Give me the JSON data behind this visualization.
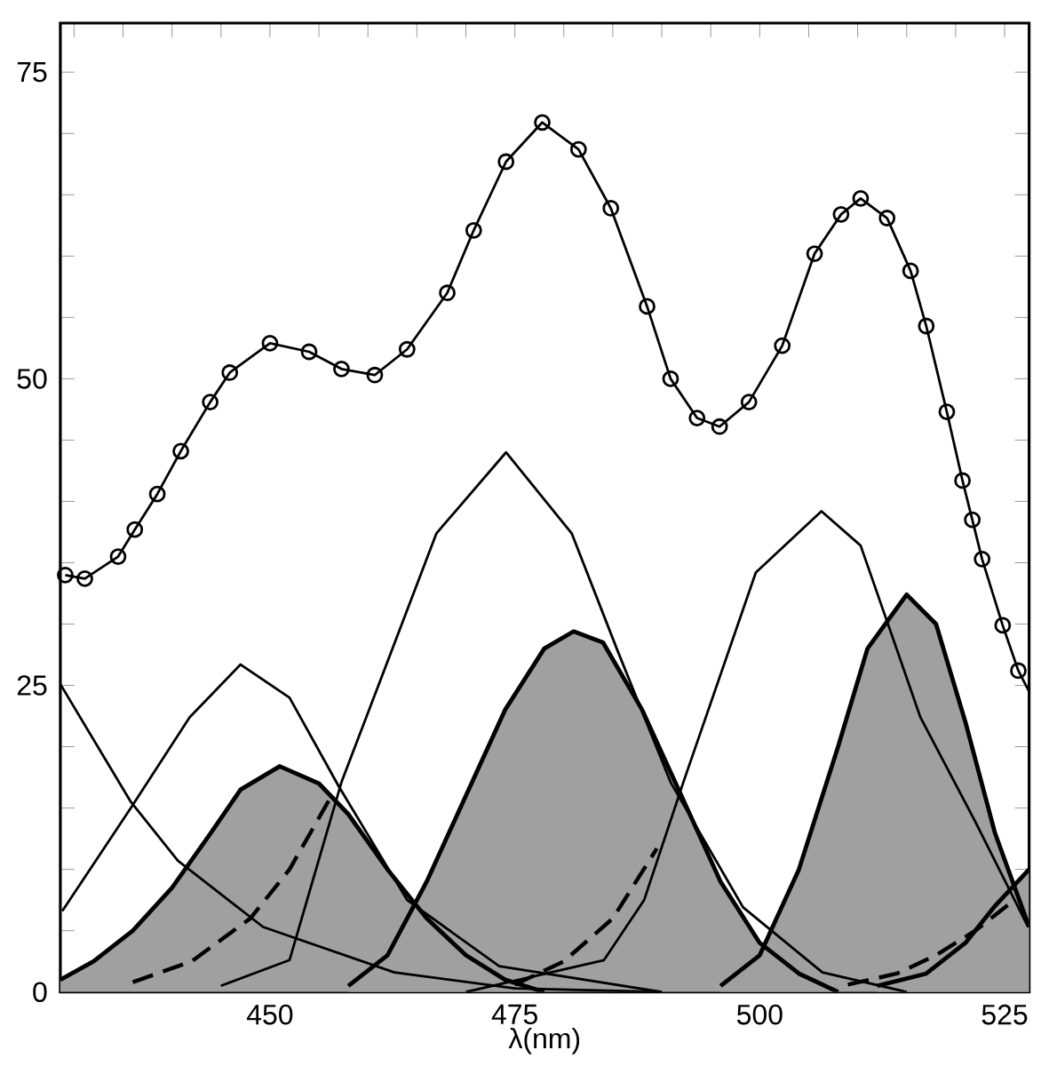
{
  "chart_data": {
    "type": "line",
    "xlabel": "λ(nm)",
    "xlim": [
      428.6,
      527.5
    ],
    "ylim": [
      0,
      79
    ],
    "xticks": [
      {
        "value": 430,
        "label": null
      },
      {
        "value": 435,
        "label": null
      },
      {
        "value": 440,
        "label": null
      },
      {
        "value": 445,
        "label": null
      },
      450,
      {
        "value": 455,
        "label": null
      },
      {
        "value": 460,
        "label": null
      },
      {
        "value": 465,
        "label": null
      },
      {
        "value": 470,
        "label": null
      },
      475,
      {
        "value": 480,
        "label": null
      },
      {
        "value": 485,
        "label": null
      },
      {
        "value": 490,
        "label": null
      },
      {
        "value": 495,
        "label": null
      },
      500,
      {
        "value": 505,
        "label": null
      },
      {
        "value": 510,
        "label": null
      },
      {
        "value": 515,
        "label": null
      },
      {
        "value": 520,
        "label": null
      },
      525
    ],
    "yticks": [
      0,
      {
        "value": 5,
        "label": null
      },
      {
        "value": 10,
        "label": null
      },
      {
        "value": 15,
        "label": null
      },
      {
        "value": 20,
        "label": null
      },
      25,
      {
        "value": 30,
        "label": null
      },
      {
        "value": 35,
        "label": null
      },
      {
        "value": 40,
        "label": null
      },
      {
        "value": 45,
        "label": null
      },
      50,
      {
        "value": 55,
        "label": null
      },
      {
        "value": 60,
        "label": null
      },
      {
        "value": 65,
        "label": null
      },
      {
        "value": 70,
        "label": null
      },
      75
    ],
    "grid": false,
    "series": [
      {
        "type": "area",
        "color": "#a0a0a0",
        "x": [
          428.6,
          432,
          436,
          440,
          444,
          447,
          451,
          455,
          458,
          462,
          466,
          470,
          474,
          478
        ],
        "values": [
          1,
          2.5,
          5,
          8.5,
          13,
          16.5,
          18.4,
          17,
          14.5,
          10,
          6,
          3,
          1,
          0
        ]
      },
      {
        "type": "area",
        "color": "#a0a0a0",
        "x": [
          458,
          462,
          466,
          470,
          474,
          478,
          481,
          484,
          488,
          492,
          496,
          500,
          504,
          508
        ],
        "values": [
          0.5,
          3,
          9,
          16,
          23,
          28,
          29.4,
          28.5,
          23,
          16,
          9,
          4,
          1.5,
          0
        ]
      },
      {
        "type": "area",
        "color": "#a0a0a0",
        "x": [
          496,
          500,
          504,
          508,
          511,
          515,
          518,
          521,
          524,
          527.5
        ],
        "values": [
          0.5,
          3,
          10,
          20,
          28,
          32.4,
          30,
          22,
          13,
          5.3
        ]
      },
      {
        "type": "area",
        "color": "#a0a0a0",
        "x": [
          512,
          517,
          521,
          524,
          527.5
        ],
        "values": [
          0.5,
          1.5,
          4,
          7,
          10
        ]
      },
      {
        "color": "#000000",
        "line_style": "dashed",
        "x": [
          436,
          442,
          448,
          452,
          456
        ],
        "values": [
          0.8,
          2.5,
          6,
          10,
          15.6
        ]
      },
      {
        "color": "#000000",
        "line_style": "dashed",
        "x": [
          475,
          480,
          485,
          489.5
        ],
        "values": [
          0.6,
          2.5,
          6,
          11.7
        ]
      },
      {
        "color": "#000000",
        "line_style": "dashed",
        "x": [
          509,
          514,
          518,
          522,
          526
        ],
        "values": [
          0.6,
          1.5,
          3,
          5,
          7.5
        ]
      },
      {
        "color": "#000000",
        "line_style": "solid",
        "x": [
          428.6,
          435.8,
          440.6,
          449.3,
          462.7,
          475,
          490
        ],
        "values": [
          25.1,
          15.5,
          10.7,
          5.3,
          1.6,
          0.3,
          0
        ]
      },
      {
        "color": "#000000",
        "line_style": "solid",
        "x": [
          428.8,
          435.8,
          441.8,
          447,
          452,
          457,
          464,
          473.4,
          490
        ],
        "values": [
          6.6,
          15,
          22.4,
          26.7,
          24,
          16.8,
          7.5,
          2.1,
          0
        ]
      },
      {
        "color": "#000000",
        "line_style": "solid",
        "x": [
          445,
          452,
          457.3,
          467,
          474.1,
          480.8,
          485.5,
          490.9,
          498.3,
          506.4,
          515
        ],
        "values": [
          0.5,
          2.6,
          17.1,
          37.4,
          44,
          37.4,
          27.8,
          17.1,
          6.9,
          1.6,
          0
        ]
      },
      {
        "color": "#000000",
        "line_style": "solid",
        "x": [
          470,
          484.1,
          488.2,
          492.2,
          499.6,
          506.3,
          510.3,
          516.4,
          522,
          527.4
        ],
        "values": [
          0,
          2.6,
          7.5,
          17.1,
          34.2,
          39.2,
          36.4,
          22.4,
          13.9,
          5.3
        ]
      },
      {
        "color": "#000000",
        "line_style": "solid",
        "x": [
          429.1,
          431.1,
          434.5,
          436.2,
          438.5,
          440.9,
          443.9,
          445.9,
          450,
          454,
          457.3,
          460.7,
          464,
          468.1,
          470.8,
          474.1,
          477.8,
          481.5,
          484.8,
          488.5,
          490.9,
          493.6,
          495.9,
          498.9,
          502.3,
          505.6,
          508.3,
          510.3,
          513,
          515.4,
          517,
          519.1,
          520.7,
          521.7,
          522.7,
          524.8,
          526.4,
          527.5
        ],
        "values": [
          34,
          33.7,
          35.5,
          37.7,
          40.6,
          44.1,
          48.1,
          50.5,
          52.9,
          52.2,
          50.8,
          50.3,
          52.4,
          57,
          62.1,
          67.7,
          70.9,
          68.7,
          63.9,
          55.9,
          50,
          46.8,
          46.1,
          48.1,
          52.7,
          60.2,
          63.4,
          64.7,
          63.1,
          58.8,
          54.3,
          47.3,
          41.7,
          38.5,
          35.3,
          29.9,
          26.2,
          24.5
        ]
      },
      {
        "type": "scatter",
        "color": "#000000",
        "marker": "circle",
        "x": [
          429.1,
          431.1,
          434.5,
          436.2,
          438.5,
          440.9,
          443.9,
          445.9,
          450,
          454,
          457.3,
          460.7,
          464,
          468.1,
          470.8,
          474.1,
          477.8,
          481.5,
          484.8,
          488.5,
          490.9,
          493.6,
          495.9,
          498.9,
          502.3,
          505.6,
          508.3,
          510.3,
          513,
          515.4,
          517,
          519.1,
          520.7,
          521.7,
          522.7,
          524.8,
          526.4
        ],
        "values": [
          34,
          33.7,
          35.5,
          37.7,
          40.6,
          44.1,
          48.1,
          50.5,
          52.9,
          52.2,
          50.8,
          50.3,
          52.4,
          57,
          62.1,
          67.7,
          70.9,
          68.7,
          63.9,
          55.9,
          50,
          46.8,
          46.1,
          48.1,
          52.7,
          60.2,
          63.4,
          64.7,
          63.1,
          58.8,
          54.3,
          47.3,
          41.7,
          38.5,
          35.3,
          29.9,
          26.2
        ]
      }
    ]
  }
}
